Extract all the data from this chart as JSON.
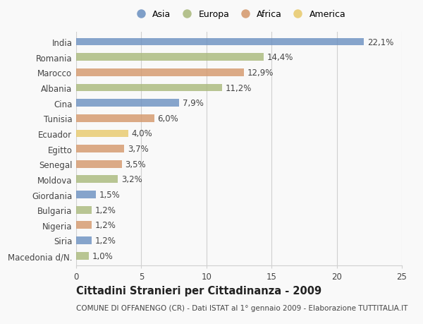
{
  "countries": [
    "India",
    "Romania",
    "Marocco",
    "Albania",
    "Cina",
    "Tunisia",
    "Ecuador",
    "Egitto",
    "Senegal",
    "Moldova",
    "Giordania",
    "Bulgaria",
    "Nigeria",
    "Siria",
    "Macedonia d/N."
  ],
  "values": [
    22.1,
    14.4,
    12.9,
    11.2,
    7.9,
    6.0,
    4.0,
    3.7,
    3.5,
    3.2,
    1.5,
    1.2,
    1.2,
    1.2,
    1.0
  ],
  "continents": [
    "Asia",
    "Europa",
    "Africa",
    "Europa",
    "Asia",
    "Africa",
    "America",
    "Africa",
    "Africa",
    "Europa",
    "Asia",
    "Europa",
    "Africa",
    "Asia",
    "Europa"
  ],
  "continent_colors": {
    "Asia": "#6a8fc0",
    "Europa": "#a8b87a",
    "Africa": "#d4976a",
    "America": "#e8c96a"
  },
  "legend_order": [
    "Asia",
    "Europa",
    "Africa",
    "America"
  ],
  "xlim": [
    0,
    25
  ],
  "xticks": [
    0,
    5,
    10,
    15,
    20,
    25
  ],
  "title": "Cittadini Stranieri per Cittadinanza - 2009",
  "subtitle": "COMUNE DI OFFANENGO (CR) - Dati ISTAT al 1° gennaio 2009 - Elaborazione TUTTITALIA.IT",
  "background_color": "#f9f9f9",
  "bar_height": 0.5,
  "grid_color": "#d0d0d0",
  "text_color": "#444444",
  "label_fontsize": 8.5,
  "title_fontsize": 10.5,
  "subtitle_fontsize": 7.5
}
